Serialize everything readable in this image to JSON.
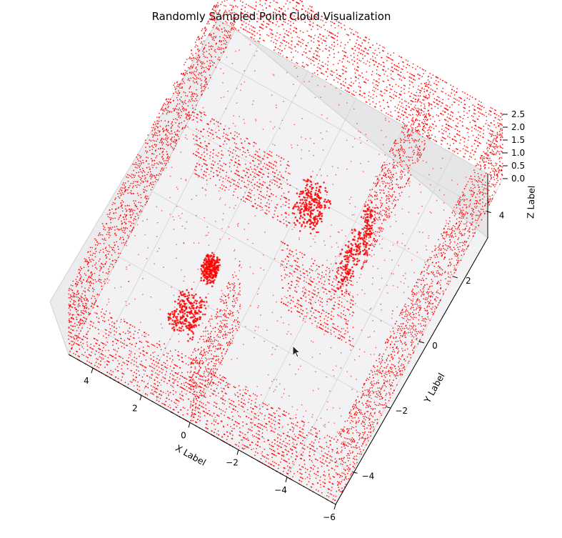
{
  "chart_data": {
    "type": "scatter",
    "title": "Randomly Sampled Point Cloud Visualization",
    "xlabel": "X Label",
    "ylabel": "Y Label",
    "zlabel": "Z Label",
    "xlim": [
      -6,
      5
    ],
    "ylim": [
      -5,
      5
    ],
    "zlim": [
      0,
      2.5
    ],
    "x_ticks": [
      "4",
      "2",
      "0",
      "−2",
      "−4",
      "−6"
    ],
    "y_ticks": [
      "−4",
      "−2",
      "0",
      "2",
      "4"
    ],
    "z_ticks": [
      "0.0",
      "0.5",
      "1.0",
      "1.5",
      "2.0",
      "2.5"
    ],
    "grid": true,
    "projection": "3d",
    "marker_color": "#ff0000",
    "series": [
      {
        "structures": [
          {
            "kind": "wall",
            "x": [
              -6,
              5
            ],
            "y": [
              -5,
              -5
            ],
            "z": [
              0,
              2.5
            ]
          },
          {
            "kind": "wall",
            "x": [
              -6,
              5
            ],
            "y": [
              5,
              5
            ],
            "z": [
              0,
              2.5
            ]
          },
          {
            "kind": "wall",
            "x": [
              5,
              5
            ],
            "y": [
              -5,
              5
            ],
            "z": [
              0,
              2.5
            ]
          },
          {
            "kind": "wall",
            "x": [
              -6,
              -6
            ],
            "y": [
              -5,
              5
            ],
            "z": [
              0,
              2.5
            ]
          },
          {
            "kind": "floor",
            "x": [
              -6,
              5
            ],
            "y": [
              -5,
              5
            ],
            "z": [
              0,
              0
            ]
          },
          {
            "kind": "wall",
            "x": [
              0,
              0
            ],
            "y": [
              -5,
              -2
            ],
            "z": [
              0,
              2.5
            ]
          },
          {
            "kind": "wall",
            "x": [
              0,
              4
            ],
            "y": [
              1,
              1
            ],
            "z": [
              0,
              2.5
            ]
          },
          {
            "kind": "wall",
            "x": [
              -4,
              -1
            ],
            "y": [
              -1,
              -1
            ],
            "z": [
              0,
              2.5
            ]
          },
          {
            "kind": "wall",
            "x": [
              -3,
              -3
            ],
            "y": [
              1,
              5
            ],
            "z": [
              0,
              2.5
            ]
          },
          {
            "kind": "box",
            "x": [
              -1,
              0
            ],
            "y": [
              1,
              2
            ],
            "z": [
              0,
              0.9
            ]
          },
          {
            "kind": "box",
            "x": [
              -3,
              -2.5
            ],
            "y": [
              0,
              2
            ],
            "z": [
              0,
              1.2
            ]
          },
          {
            "kind": "box",
            "x": [
              1,
              2
            ],
            "y": [
              -3.5,
              -2.5
            ],
            "z": [
              0.6,
              1.2
            ]
          },
          {
            "kind": "box",
            "x": [
              1.5,
              2
            ],
            "y": [
              -1.5,
              -1
            ],
            "z": [
              0,
              0.6
            ]
          }
        ]
      }
    ]
  }
}
